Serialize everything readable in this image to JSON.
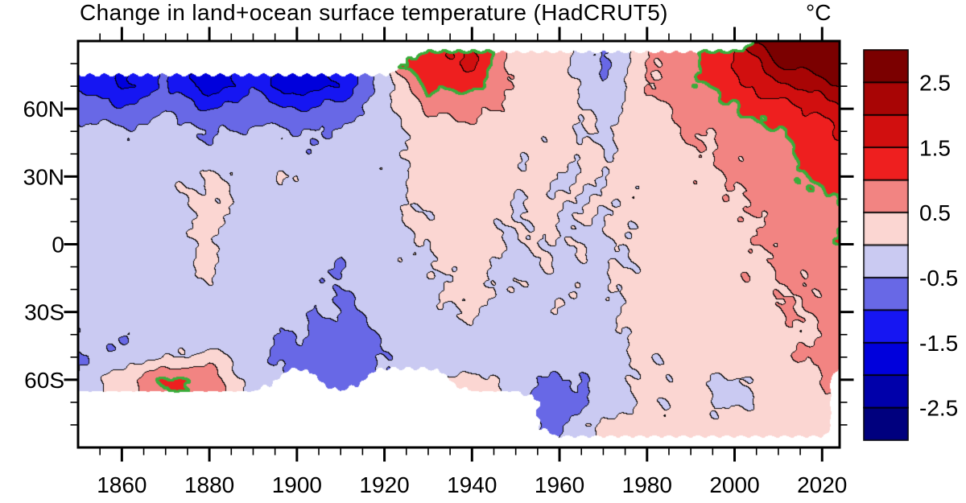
{
  "title": "Change in land+ocean surface temperature (HadCRUT5)",
  "units_label": "°C",
  "x_axis": {
    "range_years": [
      1850,
      2024
    ],
    "major_tick_years": [
      1860,
      1880,
      1900,
      1920,
      1940,
      1960,
      1980,
      2000,
      2020
    ],
    "tick_labels": [
      "1860",
      "1880",
      "1900",
      "1920",
      "1940",
      "1960",
      "1980",
      "2000",
      "2020"
    ],
    "minor_tick_step_years": 5
  },
  "y_axis": {
    "range_latitude": [
      -90,
      90
    ],
    "major_ticks": [
      {
        "lat": 60,
        "label": "60N"
      },
      {
        "lat": 30,
        "label": "30N"
      },
      {
        "lat": 0,
        "label": "0"
      },
      {
        "lat": -30,
        "label": "30S"
      },
      {
        "lat": -60,
        "label": "60S"
      }
    ],
    "minor_tick_step_deg": 10
  },
  "colorbar": {
    "tick_labels": [
      "2.5",
      "1.5",
      "0.5",
      "-0.5",
      "-1.5",
      "-2.5"
    ],
    "orientation": "vertical-warm-on-top"
  },
  "chart_data": {
    "type": "heatmap",
    "title": "Change in land+ocean surface temperature (HadCRUT5)",
    "units": "°C",
    "description": "Filled-contour plot of zonal-mean surface temperature anomaly (latitude vs time, 1850-2024). Discrete 0.5°C color levels from below -2.5 (dark blue) to above +2.5 (dark red); black thin contour lines at each level; thick green contour highlights the +1.0°C level; white = no data (polar gaps).",
    "contour_levels_degC": [
      -2.5,
      -2.0,
      -1.5,
      -1.0,
      -0.5,
      0.0,
      0.5,
      1.0,
      1.5,
      2.0,
      2.5
    ],
    "level_colors_cold_to_warm": [
      "#00007e",
      "#0000aa",
      "#0000dc",
      "#1616f2",
      "#6868e6",
      "#cacaf2",
      "#fbd6d2",
      "#f28482",
      "#ee1f1f",
      "#d10f0f",
      "#a80505",
      "#7b0000"
    ],
    "highlight_contour_degC": 1.0,
    "highlight_contour_color": "#3aad3a",
    "no_data_color": "#ffffff",
    "grid_on": false,
    "x_years": [
      1850,
      1860,
      1870,
      1880,
      1890,
      1900,
      1910,
      1920,
      1930,
      1940,
      1950,
      1960,
      1970,
      1980,
      1990,
      2000,
      2010,
      2020,
      2024
    ],
    "y_latitudes": [
      90,
      80,
      70,
      60,
      50,
      40,
      30,
      20,
      10,
      0,
      -10,
      -20,
      -30,
      -40,
      -50,
      -60,
      -70,
      -80,
      -90
    ],
    "anomaly_grid_degC": [
      [
        null,
        null,
        null,
        null,
        null,
        null,
        null,
        null,
        null,
        null,
        null,
        null,
        null,
        null,
        null,
        null,
        2.6,
        3.1,
        3.2
      ],
      [
        null,
        null,
        null,
        null,
        null,
        null,
        null,
        null,
        1.4,
        1.6,
        0.3,
        0.1,
        -0.6,
        0.4,
        0.9,
        1.5,
        2.5,
        2.9,
        3.0
      ],
      [
        -1.1,
        -1.6,
        -1.0,
        -1.8,
        -1.1,
        -1.9,
        -1.4,
        -0.3,
        1.1,
        1.2,
        0.4,
        0.2,
        -0.4,
        0.5,
        0.9,
        1.3,
        1.9,
        2.3,
        2.5
      ],
      [
        -0.6,
        -0.9,
        -0.6,
        -1.0,
        -0.7,
        -1.0,
        -0.8,
        -0.2,
        0.6,
        0.7,
        0.3,
        0.2,
        -0.2,
        0.3,
        0.7,
        0.9,
        1.3,
        1.6,
        1.8
      ],
      [
        -0.35,
        -0.4,
        -0.3,
        -0.5,
        -0.4,
        -0.45,
        -0.45,
        -0.15,
        0.3,
        0.4,
        0.15,
        0.15,
        -0.05,
        0.25,
        0.5,
        0.7,
        1.0,
        1.3,
        1.5
      ],
      [
        -0.3,
        -0.3,
        -0.25,
        -0.35,
        -0.3,
        -0.35,
        -0.4,
        -0.15,
        0.2,
        0.3,
        0.1,
        0.1,
        0.0,
        0.2,
        0.4,
        0.6,
        0.9,
        1.2,
        1.3
      ],
      [
        -0.25,
        -0.25,
        -0.2,
        0.1,
        -0.25,
        0.05,
        -0.35,
        -0.1,
        0.2,
        0.3,
        0.1,
        0.05,
        0.0,
        0.2,
        0.35,
        0.55,
        0.8,
        1.1,
        1.2
      ],
      [
        -0.2,
        -0.25,
        -0.2,
        0.15,
        -0.3,
        -0.2,
        -0.3,
        -0.15,
        0.1,
        0.25,
        0.05,
        0.05,
        -0.05,
        0.15,
        0.3,
        0.5,
        0.7,
        0.9,
        1.0
      ],
      [
        -0.2,
        -0.2,
        -0.25,
        0.15,
        -0.3,
        -0.25,
        -0.35,
        -0.15,
        0.1,
        0.25,
        0.0,
        0.05,
        -0.05,
        0.15,
        0.3,
        0.45,
        0.6,
        0.85,
        1.05
      ],
      [
        -0.2,
        -0.2,
        -0.25,
        0.1,
        -0.35,
        -0.2,
        -0.4,
        -0.2,
        0.05,
        0.3,
        -0.05,
        0.0,
        -0.1,
        0.15,
        0.3,
        0.4,
        0.55,
        0.85,
        1.0
      ],
      [
        -0.25,
        -0.2,
        -0.25,
        0.05,
        -0.3,
        -0.25,
        -0.45,
        -0.25,
        0.0,
        0.15,
        -0.1,
        -0.05,
        -0.1,
        0.15,
        0.25,
        0.4,
        0.5,
        0.7,
        0.9
      ],
      [
        -0.3,
        -0.25,
        -0.25,
        -0.1,
        -0.3,
        -0.3,
        -0.5,
        -0.3,
        -0.05,
        0.1,
        -0.1,
        -0.1,
        -0.05,
        0.15,
        0.25,
        0.35,
        0.45,
        0.65,
        0.7
      ],
      [
        -0.3,
        -0.3,
        -0.25,
        -0.2,
        -0.3,
        -0.4,
        -0.55,
        -0.35,
        -0.1,
        0.0,
        -0.15,
        -0.1,
        -0.05,
        0.15,
        0.2,
        0.3,
        0.4,
        0.6,
        0.65
      ],
      [
        -0.4,
        -0.45,
        -0.3,
        -0.3,
        -0.35,
        -0.5,
        -0.7,
        -0.45,
        -0.2,
        -0.15,
        -0.2,
        -0.2,
        -0.1,
        0.1,
        0.2,
        0.3,
        0.35,
        0.55,
        0.6
      ],
      [
        -0.5,
        -0.35,
        -0.1,
        0.25,
        -0.4,
        -0.6,
        -0.85,
        -0.5,
        -0.35,
        -0.4,
        -0.3,
        -0.35,
        -0.2,
        0.05,
        0.15,
        0.2,
        0.3,
        0.65,
        0.7
      ],
      [
        -0.4,
        0.3,
        1.05,
        0.9,
        -0.3,
        null,
        -0.9,
        null,
        null,
        0.2,
        -0.2,
        -0.6,
        -0.3,
        0.1,
        0.15,
        -0.1,
        0.2,
        0.5,
        null
      ],
      [
        null,
        null,
        null,
        null,
        null,
        null,
        null,
        null,
        null,
        null,
        null,
        -0.9,
        -0.4,
        0.05,
        0.1,
        -0.15,
        0.3,
        0.4,
        null
      ],
      [
        null,
        null,
        null,
        null,
        null,
        null,
        null,
        null,
        null,
        null,
        null,
        -0.5,
        0.1,
        0.2,
        0.1,
        0.2,
        0.1,
        0.3,
        null
      ],
      [
        null,
        null,
        null,
        null,
        null,
        null,
        null,
        null,
        null,
        null,
        null,
        null,
        null,
        null,
        null,
        null,
        null,
        null,
        null
      ]
    ]
  }
}
